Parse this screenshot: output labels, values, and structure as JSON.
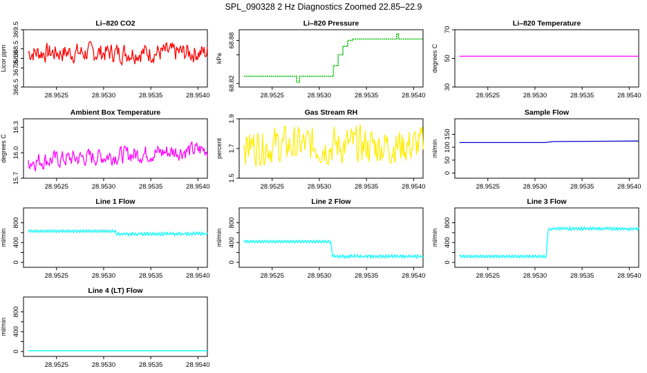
{
  "figure_title": "SPL_090328  2 Hz Diagnostics Zoomed 22.85–22.9",
  "chart_data": [
    {
      "id": "co2",
      "type": "line",
      "title": "Li–820 CO2",
      "ylabel": "Licor ppm",
      "color": "#ff0000",
      "xlim": [
        28.95215,
        28.9541
      ],
      "ylim": [
        366.5,
        369.5
      ],
      "yticks": [
        366.5,
        367.5,
        368.0,
        368.5,
        369.5
      ],
      "ytick_labels": [
        "366.5",
        "367.5",
        "368.0",
        "368.5",
        "369.5"
      ],
      "xticks": [
        28.9525,
        28.953,
        28.9535,
        28.954
      ],
      "xtick_labels": [
        "28.9525",
        "28.9530",
        "28.9535",
        "28.9540"
      ],
      "x": [
        28.9522,
        28.95215,
        28.9541
      ],
      "pattern": "noise",
      "base": 368.3,
      "amp": 0.7
    },
    {
      "id": "pressure",
      "type": "step",
      "title": "Li–820 Pressure",
      "ylabel": "kPa",
      "color": "#00bb00",
      "xlim": [
        28.95215,
        28.9541
      ],
      "ylim": [
        68.815,
        68.895
      ],
      "yticks": [
        68.82,
        68.86,
        68.88
      ],
      "ytick_labels": [
        "68.82",
        "",
        "68.88"
      ],
      "xticks": [
        28.9525,
        28.953,
        28.9535,
        28.954
      ],
      "xtick_labels": [
        "28.9525",
        "28.9530",
        "28.9535",
        "28.9540"
      ],
      "x": [
        28.9522,
        28.95275,
        28.95276,
        28.95278,
        28.95279,
        28.95312,
        28.95315,
        28.9532,
        28.95325,
        28.9533,
        28.95335,
        28.9538,
        28.95382,
        28.95384,
        28.9541
      ],
      "y": [
        68.83,
        68.83,
        68.822,
        68.822,
        68.83,
        68.83,
        68.845,
        68.86,
        68.872,
        68.88,
        68.882,
        68.882,
        68.889,
        68.882,
        68.882
      ]
    },
    {
      "id": "temperature",
      "type": "line",
      "title": "Li–820 Temperature",
      "ylabel": "degrees C",
      "color": "#ff00ff",
      "xlim": [
        28.95215,
        28.9541
      ],
      "ylim": [
        30,
        70
      ],
      "yticks": [
        30,
        50,
        70
      ],
      "ytick_labels": [
        "30",
        "50",
        "70"
      ],
      "xticks": [
        28.9525,
        28.953,
        28.9535,
        28.954
      ],
      "xtick_labels": [
        "28.9525",
        "28.9530",
        "28.9535",
        "28.9540"
      ],
      "x": [
        28.9522,
        28.9541
      ],
      "y": [
        51.5,
        51.5
      ]
    },
    {
      "id": "ambient",
      "type": "line",
      "title": "Ambient Box Temperature",
      "ylabel": "degrees C",
      "color": "#ff00ff",
      "xlim": [
        28.95215,
        28.9541
      ],
      "ylim": [
        15.7,
        16.4
      ],
      "yticks": [
        15.7,
        16.0,
        16.3
      ],
      "ytick_labels": [
        "15.7",
        "16.0",
        "16.3"
      ],
      "xticks": [
        28.9525,
        28.953,
        28.9535,
        28.954
      ],
      "xtick_labels": [
        "28.9525",
        "28.9530",
        "28.9535",
        "28.9540"
      ],
      "x": [
        28.9522,
        28.9541
      ],
      "pattern": "rising_noise",
      "base": 15.9,
      "amp": 0.14
    },
    {
      "id": "rh",
      "type": "line",
      "title": "Gas Stream RH",
      "ylabel": "percent",
      "color": "#ffee00",
      "xlim": [
        28.95215,
        28.9541
      ],
      "ylim": [
        1.5,
        1.9
      ],
      "yticks": [
        1.5,
        1.7,
        1.9
      ],
      "ytick_labels": [
        "1.5",
        "1.7",
        "1.9"
      ],
      "xticks": [
        28.9525,
        28.953,
        28.9535,
        28.954
      ],
      "xtick_labels": [
        "28.9525",
        "28.9530",
        "28.9535",
        "28.9540"
      ],
      "x": [
        28.9522,
        28.9541
      ],
      "pattern": "noise",
      "base": 1.72,
      "amp": 0.17
    },
    {
      "id": "sample",
      "type": "line",
      "title": "Sample Flow",
      "ylabel": "ml/min",
      "color": "#0000cc",
      "xlim": [
        28.95215,
        28.9541
      ],
      "ylim": [
        -20,
        210
      ],
      "yticks": [
        0,
        50,
        100,
        150
      ],
      "ytick_labels": [
        "0",
        "50",
        "100",
        "150"
      ],
      "xticks": [
        28.9525,
        28.953,
        28.9535,
        28.954
      ],
      "xtick_labels": [
        "28.9525",
        "28.9530",
        "28.9535",
        "28.9540"
      ],
      "x": [
        28.9522,
        28.9531,
        28.9532,
        28.9541
      ],
      "y": [
        118,
        118,
        122,
        124
      ]
    },
    {
      "id": "line1",
      "type": "line",
      "title": "Line 1 Flow",
      "ylabel": "ml/min",
      "color": "#00ffff",
      "xlim": [
        28.95215,
        28.9541
      ],
      "ylim": [
        -100,
        1100
      ],
      "yticks": [
        0,
        200,
        400,
        600,
        800
      ],
      "ytick_labels": [
        "0",
        "",
        "400",
        "",
        "800"
      ],
      "xticks": [
        28.9525,
        28.953,
        28.9535,
        28.954
      ],
      "xtick_labels": [
        "28.9525",
        "28.9530",
        "28.9535",
        "28.9540"
      ],
      "x": [
        28.9522,
        28.95312,
        28.95314,
        28.9541
      ],
      "y": [
        630,
        630,
        570,
        580
      ],
      "pattern": "wave"
    },
    {
      "id": "line2",
      "type": "line",
      "title": "Line 2 Flow",
      "ylabel": "ml/min",
      "color": "#00ffff",
      "xlim": [
        28.95215,
        28.9541
      ],
      "ylim": [
        -100,
        1100
      ],
      "yticks": [
        0,
        200,
        400,
        600,
        800
      ],
      "ytick_labels": [
        "0",
        "",
        "400",
        "",
        "800"
      ],
      "xticks": [
        28.9525,
        28.953,
        28.9535,
        28.954
      ],
      "xtick_labels": [
        "28.9525",
        "28.9530",
        "28.9535",
        "28.9540"
      ],
      "x": [
        28.9522,
        28.95312,
        28.95314,
        28.9541
      ],
      "y": [
        420,
        420,
        120,
        120
      ],
      "pattern": "wave"
    },
    {
      "id": "line3",
      "type": "line",
      "title": "Line 3 Flow",
      "ylabel": "ml/min",
      "color": "#00ffff",
      "xlim": [
        28.95215,
        28.9541
      ],
      "ylim": [
        -100,
        1100
      ],
      "yticks": [
        0,
        200,
        400,
        600,
        800
      ],
      "ytick_labels": [
        "0",
        "",
        "400",
        "",
        "800"
      ],
      "xticks": [
        28.9525,
        28.953,
        28.9535,
        28.954
      ],
      "xtick_labels": [
        "28.9525",
        "28.9530",
        "28.9535",
        "28.9540"
      ],
      "x": [
        28.9522,
        28.95312,
        28.95314,
        28.9541
      ],
      "y": [
        120,
        120,
        680,
        680
      ],
      "pattern": "wave"
    },
    {
      "id": "line4",
      "type": "line",
      "title": "Line 4 (LT) Flow",
      "ylabel": "ml/min",
      "color": "#00ffff",
      "xlim": [
        28.95215,
        28.9541
      ],
      "ylim": [
        -100,
        1100
      ],
      "yticks": [
        0,
        200,
        400,
        600,
        800
      ],
      "ytick_labels": [
        "0",
        "",
        "400",
        "",
        "800"
      ],
      "xticks": [
        28.9525,
        28.953,
        28.9535,
        28.954
      ],
      "xtick_labels": [
        "28.9525",
        "28.9530",
        "28.9535",
        "28.9540"
      ],
      "x": [
        28.9522,
        28.9541
      ],
      "y": [
        15,
        15
      ]
    }
  ]
}
